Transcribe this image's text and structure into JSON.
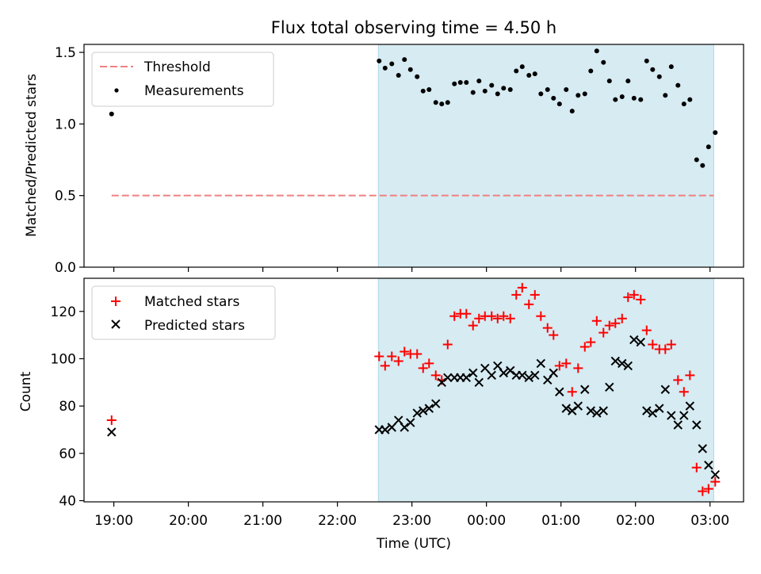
{
  "chart_data": [
    {
      "type": "scatter",
      "title": "Flux total observing time = 4.50 h",
      "ylabel": "Matched/Predicted stars",
      "xlabel": "",
      "xlim": [
        18.6,
        27.45
      ],
      "ylim": [
        0,
        1.5556
      ],
      "yticks": [
        0.0,
        0.5,
        1.0,
        1.5
      ],
      "ytick_labels": [
        "0.0",
        "0.5",
        "1.0",
        "1.5"
      ],
      "observing_span": [
        22.55,
        27.05
      ],
      "legend_position": "top-left",
      "threshold": {
        "name": "Threshold",
        "value": 0.5,
        "x_range": [
          18.97,
          27.05
        ],
        "color": "#f08080"
      },
      "series": [
        {
          "name": "Measurements",
          "color": "#000000",
          "marker": "dot",
          "points": [
            [
              18.97,
              1.07
            ],
            [
              22.56,
              1.44
            ],
            [
              22.64,
              1.39
            ],
            [
              22.73,
              1.42
            ],
            [
              22.82,
              1.34
            ],
            [
              22.9,
              1.45
            ],
            [
              22.98,
              1.38
            ],
            [
              23.07,
              1.33
            ],
            [
              23.15,
              1.23
            ],
            [
              23.23,
              1.24
            ],
            [
              23.32,
              1.15
            ],
            [
              23.4,
              1.14
            ],
            [
              23.48,
              1.15
            ],
            [
              23.57,
              1.28
            ],
            [
              23.65,
              1.29
            ],
            [
              23.73,
              1.29
            ],
            [
              23.82,
              1.22
            ],
            [
              23.9,
              1.3
            ],
            [
              23.98,
              1.23
            ],
            [
              24.07,
              1.27
            ],
            [
              24.15,
              1.21
            ],
            [
              24.23,
              1.25
            ],
            [
              24.32,
              1.24
            ],
            [
              24.4,
              1.37
            ],
            [
              24.48,
              1.4
            ],
            [
              24.57,
              1.34
            ],
            [
              24.65,
              1.35
            ],
            [
              24.73,
              1.21
            ],
            [
              24.82,
              1.24
            ],
            [
              24.9,
              1.18
            ],
            [
              24.98,
              1.14
            ],
            [
              25.07,
              1.24
            ],
            [
              25.15,
              1.09
            ],
            [
              25.23,
              1.2
            ],
            [
              25.32,
              1.21
            ],
            [
              25.4,
              1.37
            ],
            [
              25.48,
              1.51
            ],
            [
              25.57,
              1.43
            ],
            [
              25.65,
              1.3
            ],
            [
              25.73,
              1.17
            ],
            [
              25.82,
              1.19
            ],
            [
              25.9,
              1.3
            ],
            [
              25.98,
              1.18
            ],
            [
              26.07,
              1.17
            ],
            [
              26.15,
              1.44
            ],
            [
              26.23,
              1.38
            ],
            [
              26.32,
              1.33
            ],
            [
              26.4,
              1.2
            ],
            [
              26.48,
              1.4
            ],
            [
              26.57,
              1.27
            ],
            [
              26.65,
              1.14
            ],
            [
              26.73,
              1.17
            ],
            [
              26.82,
              0.75
            ],
            [
              26.9,
              0.71
            ],
            [
              26.98,
              0.84
            ],
            [
              27.07,
              0.94
            ]
          ]
        }
      ]
    },
    {
      "type": "scatter",
      "title": "",
      "ylabel": "Count",
      "xlabel": "Time (UTC)",
      "xlim": [
        18.6,
        27.45
      ],
      "ylim": [
        39.5,
        134
      ],
      "yticks": [
        40,
        60,
        80,
        100,
        120
      ],
      "ytick_labels": [
        "40",
        "60",
        "80",
        "100",
        "120"
      ],
      "xticks": [
        19,
        20,
        21,
        22,
        23,
        24,
        25,
        26,
        27
      ],
      "xtick_labels": [
        "19:00",
        "20:00",
        "21:00",
        "22:00",
        "23:00",
        "00:00",
        "01:00",
        "02:00",
        "03:00"
      ],
      "observing_span": [
        22.55,
        27.05
      ],
      "legend_position": "top-left",
      "series": [
        {
          "name": "Matched stars",
          "color": "#ff0000",
          "marker": "plus",
          "points": [
            [
              18.97,
              74
            ],
            [
              22.56,
              101
            ],
            [
              22.64,
              97
            ],
            [
              22.73,
              101
            ],
            [
              22.82,
              99
            ],
            [
              22.9,
              103
            ],
            [
              22.98,
              102
            ],
            [
              23.07,
              102
            ],
            [
              23.15,
              96
            ],
            [
              23.23,
              98
            ],
            [
              23.32,
              93
            ],
            [
              23.4,
              91
            ],
            [
              23.48,
              106
            ],
            [
              23.57,
              118
            ],
            [
              23.65,
              119
            ],
            [
              23.73,
              119
            ],
            [
              23.82,
              114
            ],
            [
              23.9,
              117
            ],
            [
              23.98,
              118
            ],
            [
              24.07,
              118
            ],
            [
              24.15,
              117
            ],
            [
              24.23,
              118
            ],
            [
              24.32,
              117
            ],
            [
              24.4,
              127
            ],
            [
              24.48,
              130
            ],
            [
              24.57,
              123
            ],
            [
              24.65,
              127
            ],
            [
              24.73,
              118
            ],
            [
              24.82,
              113
            ],
            [
              24.9,
              110
            ],
            [
              24.98,
              97
            ],
            [
              25.07,
              98
            ],
            [
              25.15,
              86
            ],
            [
              25.23,
              96
            ],
            [
              25.32,
              105
            ],
            [
              25.4,
              107
            ],
            [
              25.48,
              116
            ],
            [
              25.57,
              111
            ],
            [
              25.65,
              114
            ],
            [
              25.73,
              115
            ],
            [
              25.82,
              117
            ],
            [
              25.9,
              126
            ],
            [
              25.98,
              127
            ],
            [
              26.07,
              125
            ],
            [
              26.15,
              112
            ],
            [
              26.23,
              106
            ],
            [
              26.32,
              104
            ],
            [
              26.4,
              104
            ],
            [
              26.48,
              106
            ],
            [
              26.57,
              91
            ],
            [
              26.65,
              86
            ],
            [
              26.73,
              93
            ],
            [
              26.82,
              54
            ],
            [
              26.9,
              44
            ],
            [
              26.98,
              45
            ],
            [
              27.07,
              48
            ]
          ]
        },
        {
          "name": "Predicted stars",
          "color": "#000000",
          "marker": "x",
          "points": [
            [
              18.97,
              69
            ],
            [
              22.56,
              70
            ],
            [
              22.64,
              70
            ],
            [
              22.73,
              71
            ],
            [
              22.82,
              74
            ],
            [
              22.9,
              71
            ],
            [
              22.98,
              73
            ],
            [
              23.07,
              77
            ],
            [
              23.15,
              78
            ],
            [
              23.23,
              79
            ],
            [
              23.32,
              81
            ],
            [
              23.4,
              90
            ],
            [
              23.48,
              92
            ],
            [
              23.57,
              92
            ],
            [
              23.65,
              92
            ],
            [
              23.73,
              92
            ],
            [
              23.82,
              94
            ],
            [
              23.9,
              90
            ],
            [
              23.98,
              96
            ],
            [
              24.07,
              93
            ],
            [
              24.15,
              97
            ],
            [
              24.23,
              94
            ],
            [
              24.32,
              95
            ],
            [
              24.4,
              93
            ],
            [
              24.48,
              93
            ],
            [
              24.57,
              92
            ],
            [
              24.65,
              93
            ],
            [
              24.73,
              98
            ],
            [
              24.82,
              91
            ],
            [
              24.9,
              94
            ],
            [
              24.98,
              86
            ],
            [
              25.07,
              79
            ],
            [
              25.15,
              78
            ],
            [
              25.23,
              80
            ],
            [
              25.32,
              87
            ],
            [
              25.4,
              78
            ],
            [
              25.48,
              77
            ],
            [
              25.57,
              78
            ],
            [
              25.65,
              88
            ],
            [
              25.73,
              99
            ],
            [
              25.82,
              98
            ],
            [
              25.9,
              97
            ],
            [
              25.98,
              108
            ],
            [
              26.07,
              107
            ],
            [
              26.15,
              78
            ],
            [
              26.23,
              77
            ],
            [
              26.32,
              79
            ],
            [
              26.4,
              87
            ],
            [
              26.48,
              76
            ],
            [
              26.57,
              72
            ],
            [
              26.65,
              76
            ],
            [
              26.73,
              80
            ],
            [
              26.82,
              72
            ],
            [
              26.9,
              62
            ],
            [
              26.98,
              55
            ],
            [
              27.07,
              51
            ]
          ]
        }
      ]
    }
  ],
  "colors": {
    "observing_span_fill": "#add8e6",
    "threshold_line": "#f08080",
    "matched": "#ff0000",
    "predicted": "#000000"
  }
}
